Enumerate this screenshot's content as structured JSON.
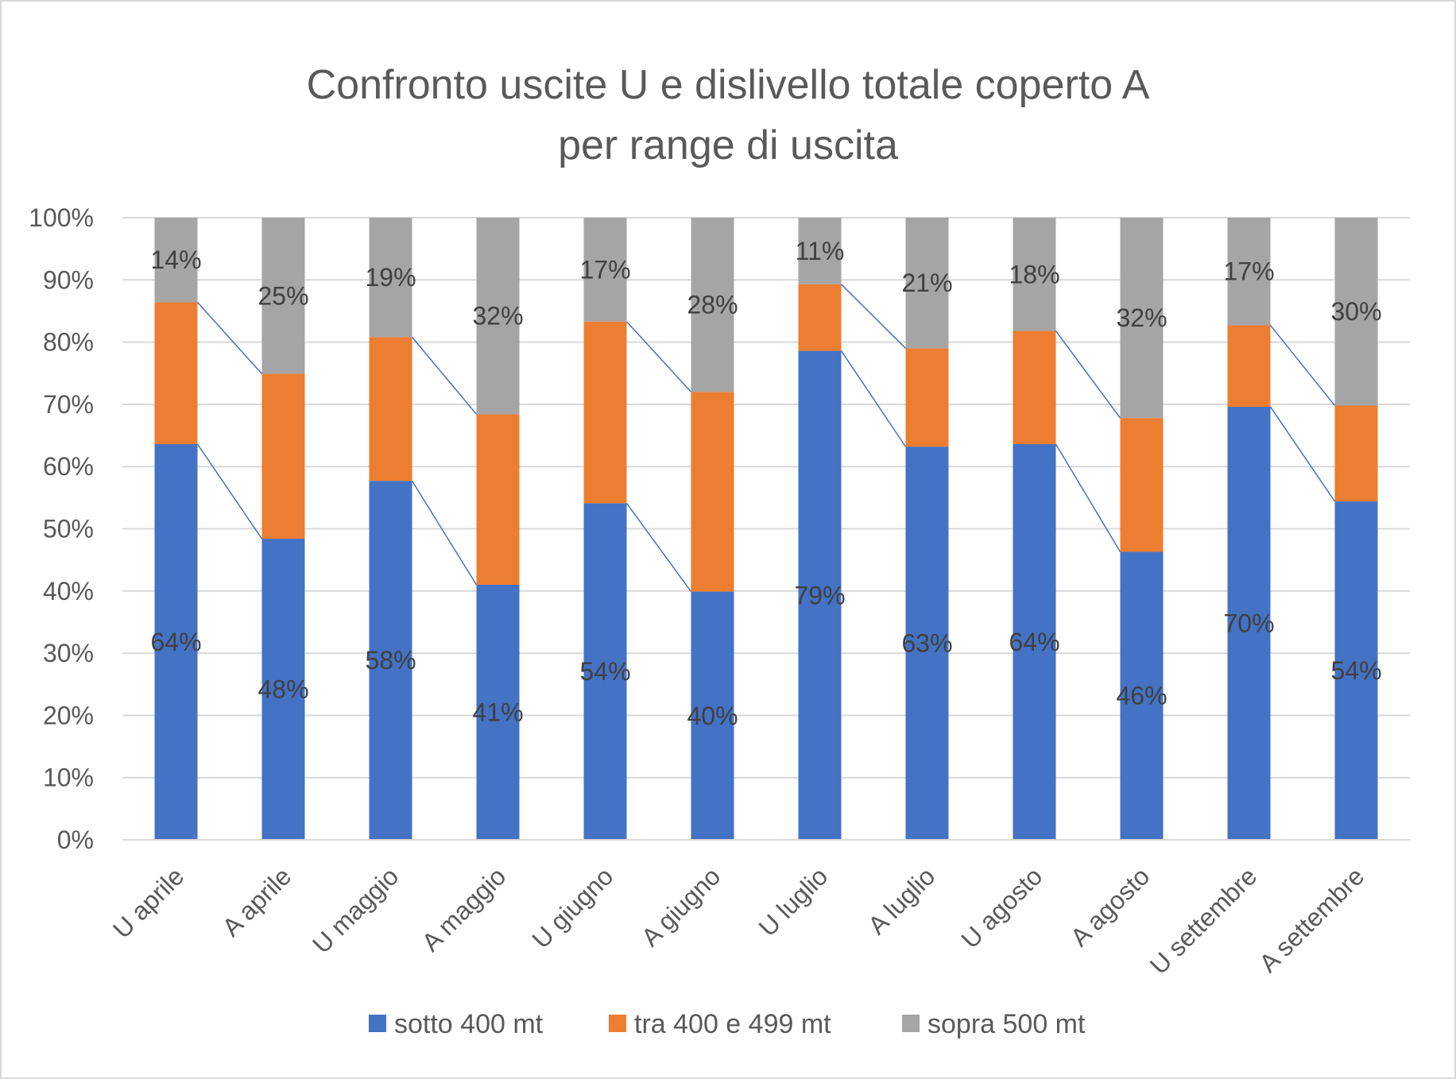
{
  "chart_data": {
    "type": "bar",
    "stacked": true,
    "percent_stacked": true,
    "title_lines": [
      "Confronto uscite U e dislivello totale coperto A",
      "per range di uscita"
    ],
    "categories": [
      "U aprile",
      "A aprile",
      "U maggio",
      "A maggio",
      "U giugno",
      "A giugno",
      "U luglio",
      "A luglio",
      "U agosto",
      "A agosto",
      "U settembre",
      "A settembre"
    ],
    "series": [
      {
        "name": "sotto 400 mt",
        "color": "#4472C4",
        "values": [
          63.6,
          48.4,
          57.7,
          41.0,
          54.1,
          39.9,
          78.6,
          63.2,
          63.6,
          46.3,
          69.6,
          54.4
        ],
        "labels": [
          "64%",
          "48%",
          "58%",
          "41%",
          "54%",
          "40%",
          "79%",
          "63%",
          "64%",
          "46%",
          "70%",
          "54%"
        ]
      },
      {
        "name": "tra 400 e 499 mt",
        "color": "#ED7D31",
        "values": [
          22.8,
          26.5,
          23.1,
          27.4,
          29.2,
          32.1,
          10.7,
          15.8,
          18.2,
          21.5,
          13.1,
          15.4
        ],
        "labels": [
          "",
          "",
          "",
          "",
          "",
          "",
          "",
          "",
          "",
          "",
          "",
          ""
        ]
      },
      {
        "name": "sopra 500 mt",
        "color": "#A5A5A5",
        "values": [
          13.6,
          25.1,
          19.2,
          31.6,
          16.7,
          28.0,
          10.7,
          21.0,
          18.2,
          32.2,
          17.3,
          30.2
        ],
        "labels": [
          "14%",
          "25%",
          "19%",
          "32%",
          "17%",
          "28%",
          "11%",
          "21%",
          "18%",
          "32%",
          "17%",
          "30%"
        ]
      }
    ],
    "y_ticks": [
      "0%",
      "10%",
      "20%",
      "30%",
      "40%",
      "50%",
      "60%",
      "70%",
      "80%",
      "90%",
      "100%"
    ],
    "ylim": [
      0,
      100
    ],
    "grid": true,
    "legend": "bottom",
    "series_lines": true,
    "series_line_color": "#4472C4"
  }
}
